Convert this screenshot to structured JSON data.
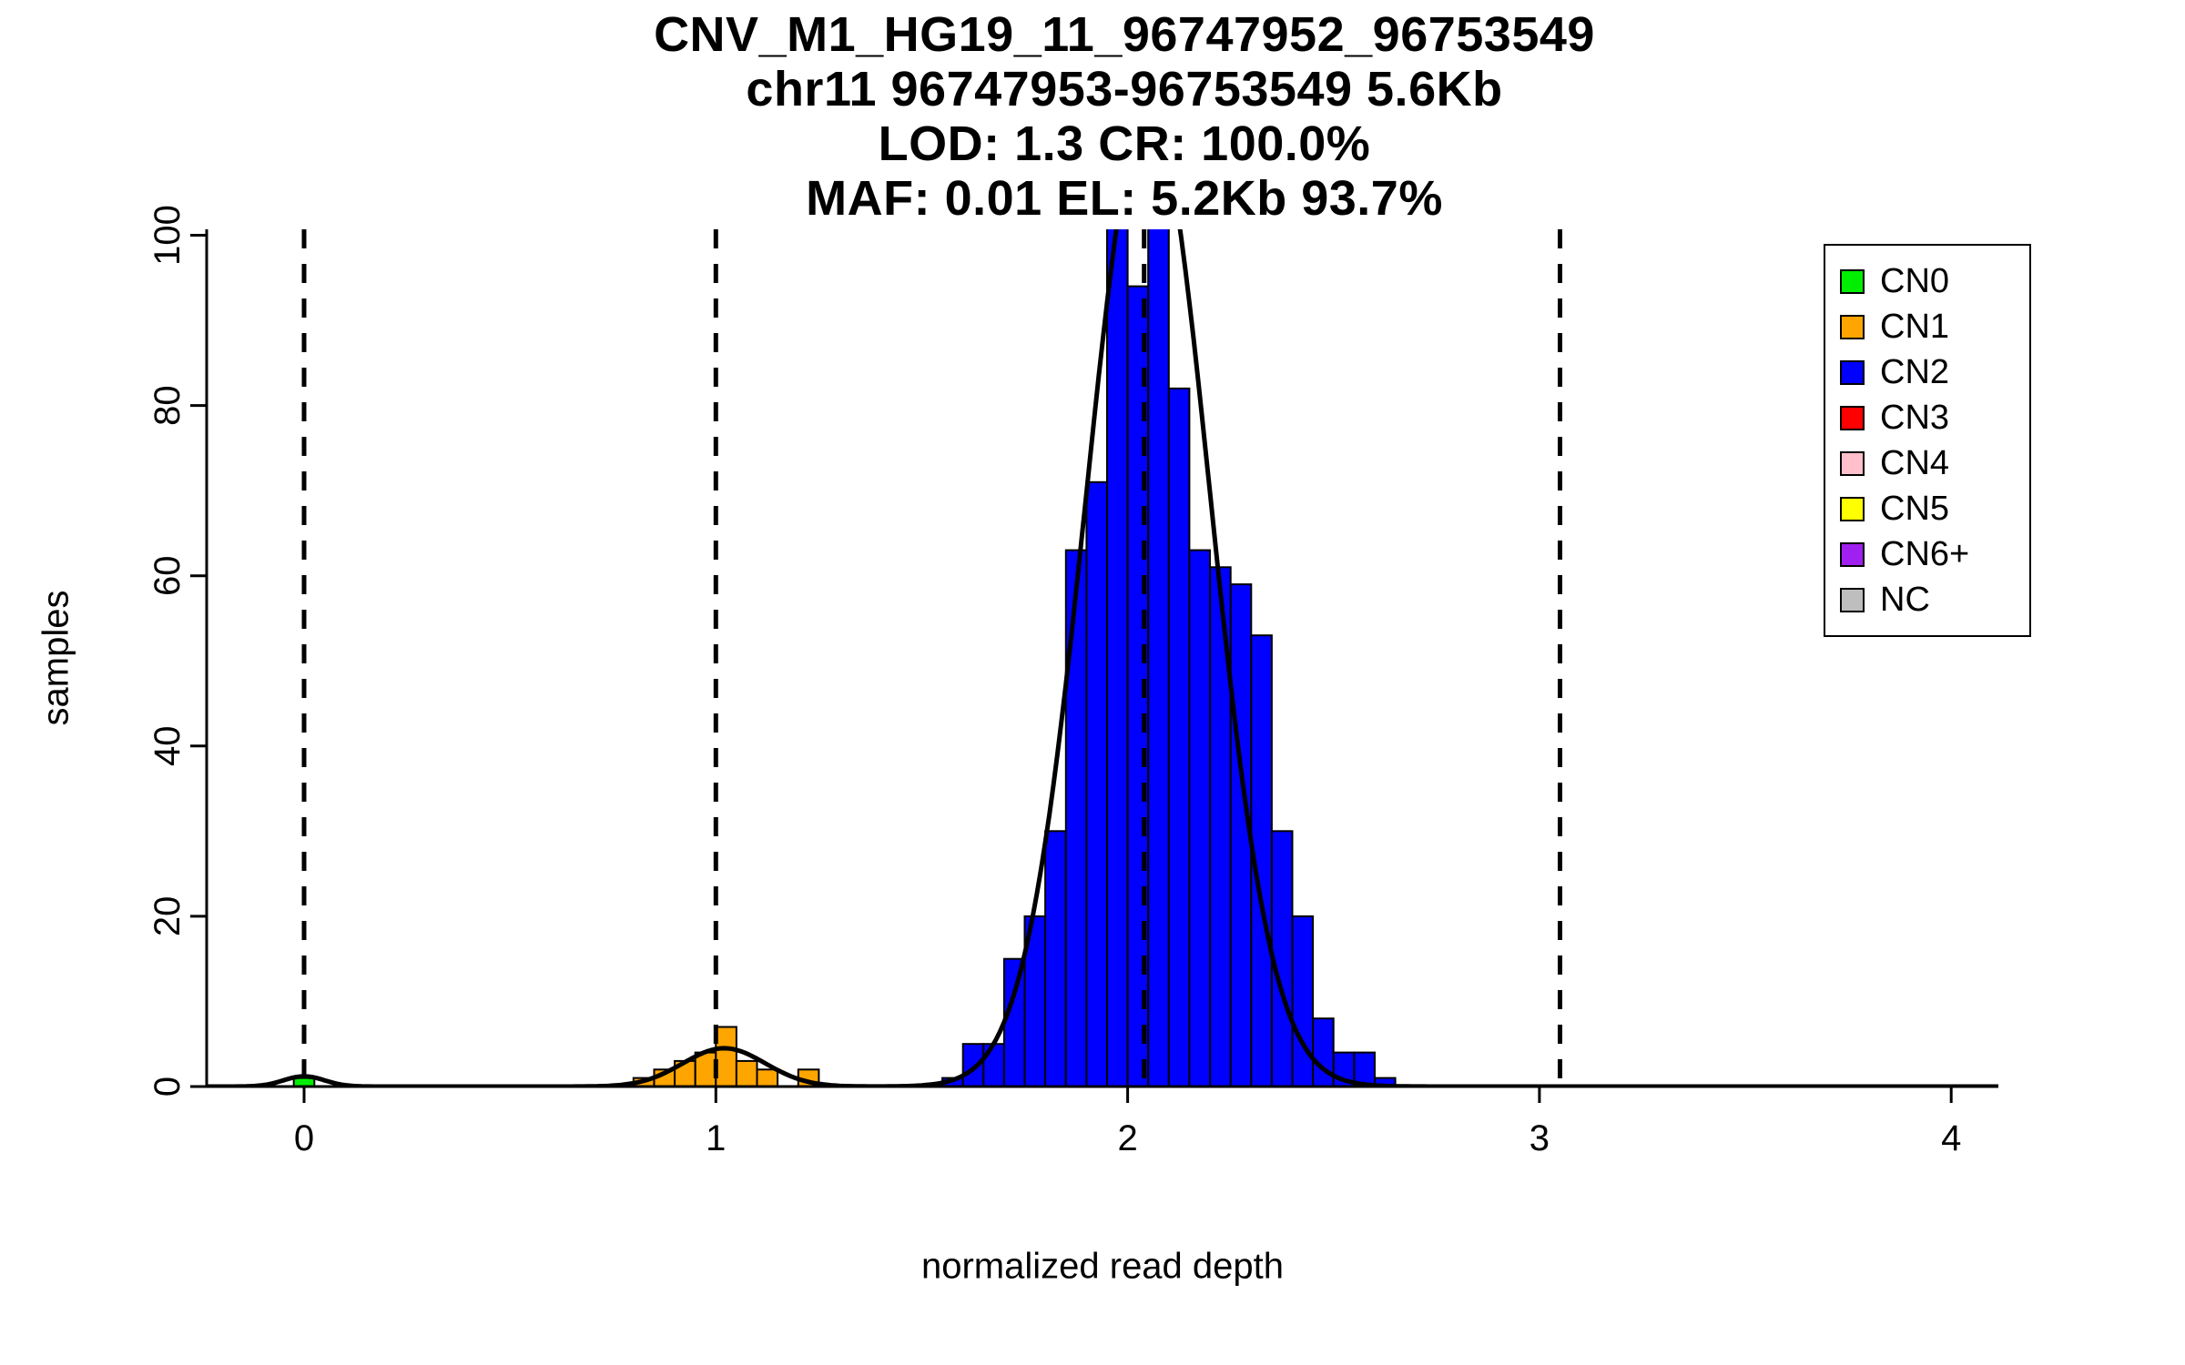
{
  "chart_data": {
    "type": "bar",
    "subtype": "histogram",
    "title_lines": [
      "CNV_M1_HG19_11_96747952_96753549",
      "chr11 96747953-96753549 5.6Kb",
      "LOD: 1.3 CR: 100.0%",
      "MAF: 0.01 EL: 5.2Kb 93.7%"
    ],
    "xlabel": "normalized read depth",
    "ylabel": "samples",
    "xlim": [
      -0.24,
      4.11
    ],
    "ylim": [
      0,
      100
    ],
    "grid": false,
    "x_ticks": [
      0,
      1,
      2,
      3,
      4
    ],
    "y_ticks": [
      0,
      20,
      40,
      60,
      80,
      100
    ],
    "bin_width": 0.05,
    "series": [
      {
        "name": "CN0",
        "color": "#00EE00",
        "bars": [
          [
            -0.025,
            1
          ]
        ]
      },
      {
        "name": "CN1",
        "color": "#FFA500",
        "bars": [
          [
            0.8,
            1
          ],
          [
            0.85,
            2
          ],
          [
            0.9,
            3
          ],
          [
            0.95,
            4
          ],
          [
            1.0,
            7
          ],
          [
            1.05,
            3
          ],
          [
            1.1,
            2
          ],
          [
            1.2,
            2
          ]
        ]
      },
      {
        "name": "CN2",
        "color": "#0000FF",
        "bars": [
          [
            1.55,
            1
          ],
          [
            1.6,
            5
          ],
          [
            1.65,
            5
          ],
          [
            1.7,
            15
          ],
          [
            1.75,
            20
          ],
          [
            1.8,
            30
          ],
          [
            1.85,
            63
          ],
          [
            1.9,
            71
          ],
          [
            1.95,
            104
          ],
          [
            2.0,
            94
          ],
          [
            2.05,
            104
          ],
          [
            2.1,
            82
          ],
          [
            2.15,
            63
          ],
          [
            2.2,
            61
          ],
          [
            2.25,
            59
          ],
          [
            2.3,
            53
          ],
          [
            2.35,
            30
          ],
          [
            2.4,
            20
          ],
          [
            2.45,
            8
          ],
          [
            2.5,
            4
          ],
          [
            2.55,
            4
          ],
          [
            2.6,
            1
          ]
        ]
      }
    ],
    "guide_lines_x": [
      0,
      1,
      2.04,
      3.05
    ],
    "density_curve_components": [
      {
        "mean": 0.0,
        "sd": 0.05,
        "peak": 1.2
      },
      {
        "mean": 1.02,
        "sd": 0.1,
        "peak": 4.5
      },
      {
        "mean": 2.05,
        "sd": 0.15,
        "peak": 115
      }
    ],
    "legend": {
      "position": "top-right",
      "entries": [
        {
          "label": "CN0",
          "color": "#00EE00"
        },
        {
          "label": "CN1",
          "color": "#FFA500"
        },
        {
          "label": "CN2",
          "color": "#0000FF"
        },
        {
          "label": "CN3",
          "color": "#FF0000"
        },
        {
          "label": "CN4",
          "color": "#FFC0CB"
        },
        {
          "label": "CN5",
          "color": "#FFFF00"
        },
        {
          "label": "CN6+",
          "color": "#A020F0"
        },
        {
          "label": "NC",
          "color": "#BEBEBE"
        }
      ]
    },
    "colors": {
      "axis": "#000000",
      "curve": "#000000",
      "bar_border": "#000000",
      "guide_line": "#000000",
      "background": "#FFFFFF"
    }
  }
}
